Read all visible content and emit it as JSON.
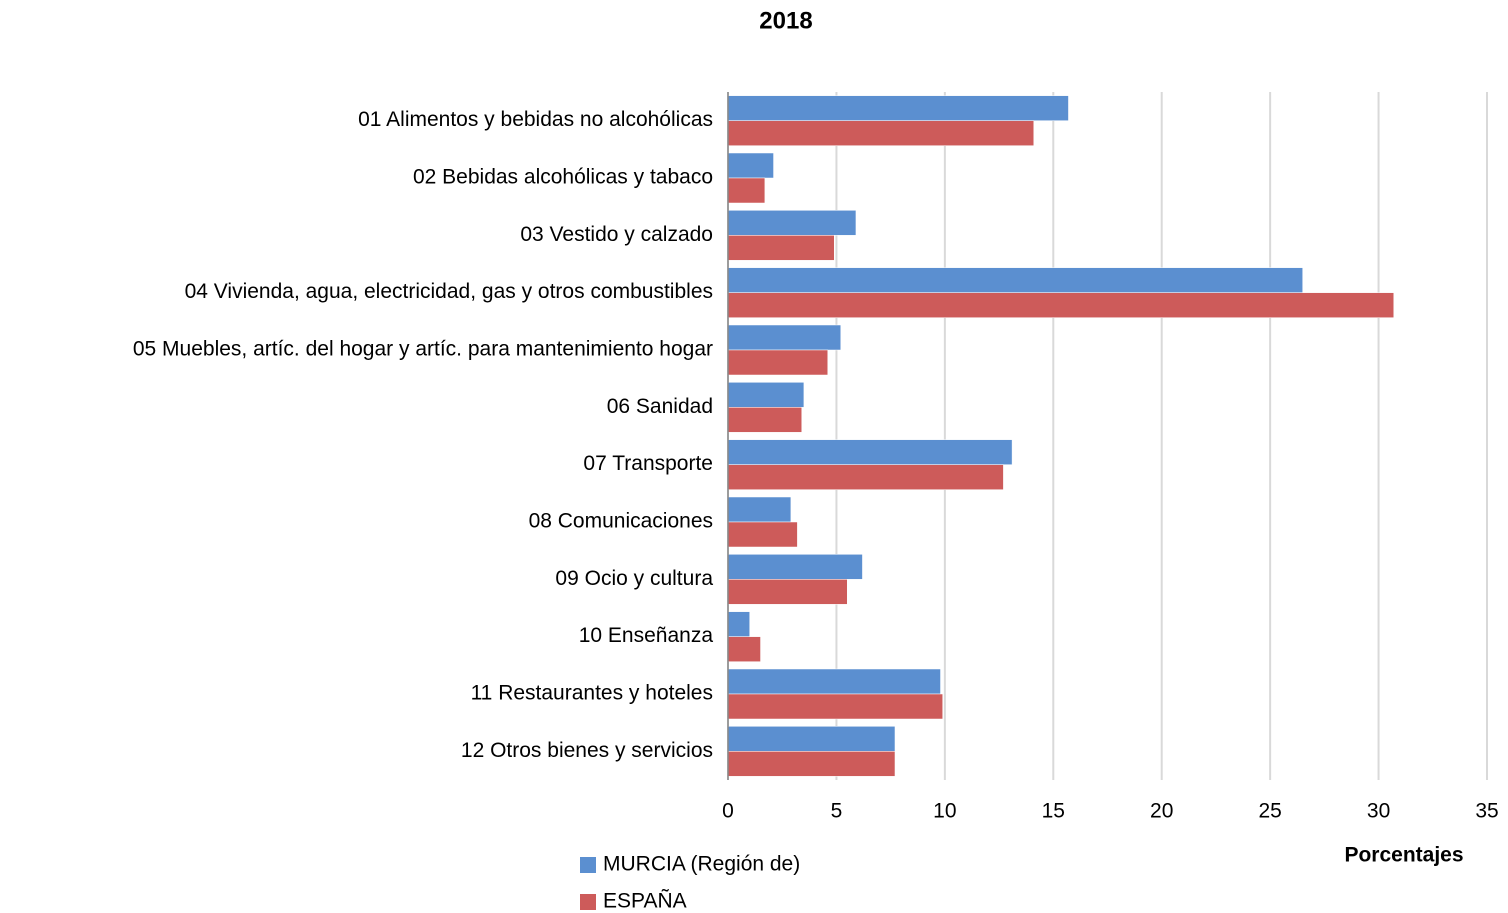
{
  "chart_data": {
    "type": "hbar",
    "title": "2018",
    "categories": [
      "01 Alimentos y bebidas no alcohólicas",
      "02 Bebidas alcohólicas y tabaco",
      "03 Vestido y calzado",
      "04 Vivienda, agua, electricidad, gas y otros combustibles",
      "05 Muebles, artíc. del hogar y artíc. para mantenimiento hogar",
      "06 Sanidad",
      "07 Transporte",
      "08 Comunicaciones",
      "09 Ocio y cultura",
      "10 Enseñanza",
      "11 Restaurantes y hoteles",
      "12 Otros bienes y servicios"
    ],
    "series": [
      {
        "name": "MURCIA (Región de)",
        "color": "#5b8fd0",
        "values": [
          15.7,
          2.1,
          5.9,
          26.5,
          5.2,
          3.5,
          13.1,
          2.9,
          6.2,
          1.0,
          9.8,
          7.7
        ]
      },
      {
        "name": "ESPAÑA",
        "color": "#cd5b5a",
        "values": [
          14.1,
          1.7,
          4.9,
          30.7,
          4.6,
          3.4,
          12.7,
          3.2,
          5.5,
          1.5,
          9.9,
          7.7
        ]
      }
    ],
    "x_label": "Porcentajes",
    "xlim": [
      0,
      35
    ],
    "xticks": [
      0,
      5,
      10,
      15,
      20,
      25,
      30,
      35
    ],
    "grid": true
  }
}
